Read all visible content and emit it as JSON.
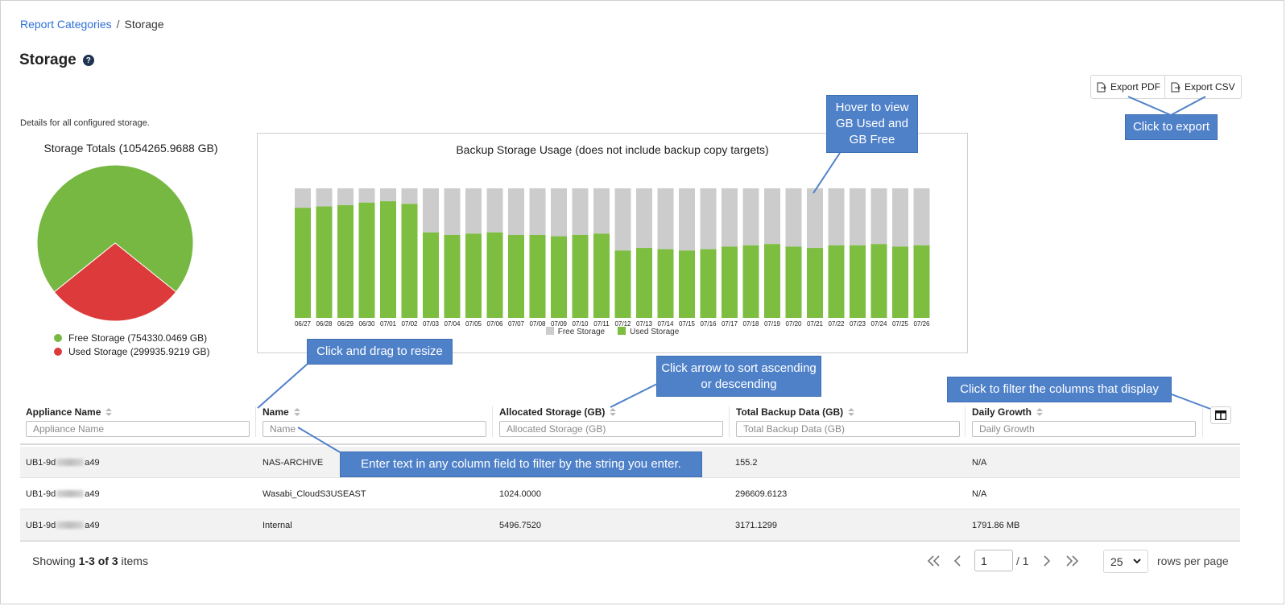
{
  "breadcrumb": {
    "parent": "Report Categories",
    "separator": "/",
    "current": "Storage"
  },
  "page": {
    "title": "Storage",
    "help_glyph": "?",
    "details": "Details for all configured storage."
  },
  "toolbar": {
    "export_pdf": "Export PDF",
    "export_csv": "Export CSV"
  },
  "colors": {
    "free": "#77b843",
    "used": "#dd3b3b",
    "bar_used": "#7dbd3f",
    "bar_free": "#cccccc",
    "callout": "#4f81c9",
    "link": "#2f6fd6"
  },
  "chart_data": [
    {
      "type": "pie",
      "title": "Storage Totals (1054265.9688 GB)",
      "slices": [
        {
          "label": "Free Storage (754330.0469 GB)",
          "value": 754330.0469,
          "color": "#77b843"
        },
        {
          "label": "Used Storage (299935.9219 GB)",
          "value": 299935.9219,
          "color": "#dd3b3b"
        }
      ]
    },
    {
      "type": "bar",
      "stacked": true,
      "title": "Backup Storage Usage (does not include backup copy targets)",
      "categories": [
        "06/27",
        "06/28",
        "06/29",
        "06/30",
        "07/01",
        "07/02",
        "07/03",
        "07/04",
        "07/05",
        "07/06",
        "07/07",
        "07/08",
        "07/09",
        "07/10",
        "07/11",
        "07/12",
        "07/13",
        "07/14",
        "07/15",
        "07/16",
        "07/17",
        "07/18",
        "07/19",
        "07/20",
        "07/21",
        "07/22",
        "07/23",
        "07/24",
        "07/25",
        "07/26"
      ],
      "series": [
        {
          "name": "Free Storage",
          "color": "#cccccc",
          "values": [
            15,
            14,
            13,
            11,
            10,
            12,
            34,
            36,
            35,
            34,
            36,
            36,
            37,
            36,
            35,
            48,
            46,
            47,
            48,
            47,
            45,
            44,
            43,
            45,
            46,
            44,
            44,
            43,
            45,
            44
          ]
        },
        {
          "name": "Used Storage",
          "color": "#7dbd3f",
          "values": [
            85,
            86,
            87,
            89,
            90,
            88,
            66,
            64,
            65,
            66,
            64,
            64,
            63,
            64,
            65,
            52,
            54,
            53,
            52,
            53,
            55,
            56,
            57,
            55,
            54,
            56,
            56,
            57,
            55,
            56
          ]
        }
      ],
      "legend": "bottom",
      "ylim": [
        0,
        100
      ]
    }
  ],
  "callouts": {
    "hover": "Hover to view GB Used  and GB Free",
    "export": "Click to export",
    "resize": "Click and drag to resize",
    "sort": "Click arrow to sort ascending or descending",
    "filter_columns": "Click to filter the columns that display",
    "enter_text": "Enter text in any column field to filter by the string you enter."
  },
  "table": {
    "columns": [
      {
        "label": "Appliance Name",
        "placeholder": "Appliance Name"
      },
      {
        "label": "Name",
        "placeholder": "Name"
      },
      {
        "label": "Allocated Storage (GB)",
        "placeholder": "Allocated Storage (GB)"
      },
      {
        "label": "Total Backup Data (GB)",
        "placeholder": "Total Backup Data (GB)"
      },
      {
        "label": "Daily Growth",
        "placeholder": "Daily Growth"
      }
    ],
    "rows": [
      {
        "appliance_prefix": "UB1-9d",
        "appliance_suffix": "a49",
        "name": "NAS-ARCHIVE",
        "allocated": "",
        "total": "155.2",
        "growth": "N/A"
      },
      {
        "appliance_prefix": "UB1-9d",
        "appliance_suffix": "a49",
        "name": "Wasabi_CloudS3USEAST",
        "allocated": "1024.0000",
        "total": "296609.6123",
        "growth": "N/A"
      },
      {
        "appliance_prefix": "UB1-9d",
        "appliance_suffix": "a49",
        "name": "Internal",
        "allocated": "5496.7520",
        "total": "3171.1299",
        "growth": "1791.86 MB"
      }
    ]
  },
  "footer": {
    "showing_prefix": "Showing ",
    "showing_range": "1-3 of 3",
    "showing_suffix": " items",
    "page_value": "1",
    "page_total": "/ 1",
    "rows_value": "25",
    "rows_label": "rows per page"
  }
}
